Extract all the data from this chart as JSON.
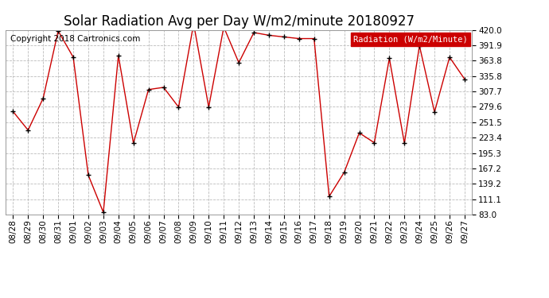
{
  "title": "Solar Radiation Avg per Day W/m2/minute 20180927",
  "copyright": "Copyright 2018 Cartronics.com",
  "legend_label": "Radiation (W/m2/Minute)",
  "dates": [
    "08/28",
    "08/29",
    "08/30",
    "08/31",
    "09/01",
    "09/02",
    "09/03",
    "09/04",
    "09/05",
    "09/06",
    "09/07",
    "09/08",
    "09/09",
    "09/10",
    "09/11",
    "09/12",
    "09/13",
    "09/14",
    "09/15",
    "09/16",
    "09/17",
    "09/18",
    "09/19",
    "09/20",
    "09/21",
    "09/22",
    "09/23",
    "09/24",
    "09/25",
    "09/26",
    "09/27"
  ],
  "values": [
    271,
    237,
    295,
    418,
    370,
    155,
    87,
    373,
    213,
    311,
    315,
    279,
    431,
    279,
    425,
    360,
    415,
    410,
    407,
    404,
    404,
    116,
    160,
    232,
    214,
    368,
    213,
    391,
    270,
    370,
    330
  ],
  "ylim": [
    83.0,
    420.0
  ],
  "yticks": [
    83.0,
    111.1,
    139.2,
    167.2,
    195.3,
    223.4,
    251.5,
    279.6,
    307.7,
    335.8,
    363.8,
    391.9,
    420.0
  ],
  "line_color": "#cc0000",
  "marker_color": "#000000",
  "bg_color": "#ffffff",
  "grid_color": "#bbbbbb",
  "legend_bg": "#cc0000",
  "legend_text_color": "#ffffff",
  "title_fontsize": 12,
  "tick_fontsize": 7.5,
  "copyright_fontsize": 7.5,
  "legend_fontsize": 7.5
}
